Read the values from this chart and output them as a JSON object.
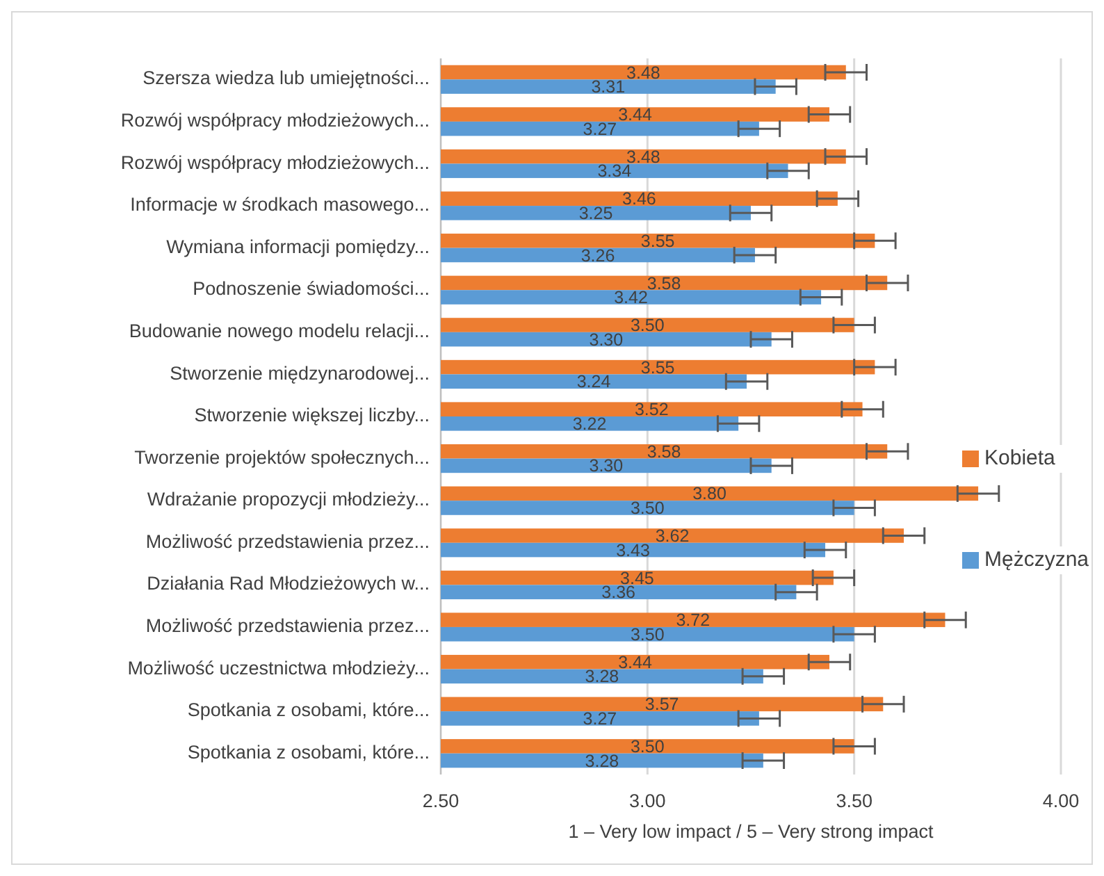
{
  "chart_data": {
    "type": "bar",
    "orientation": "horizontal",
    "xlabel": "1 – Very low impact / 5 – Very strong impact",
    "categories": [
      "Szersza wiedza lub umiejętności...",
      "Rozwój współpracy młodzieżowych...",
      "Rozwój współpracy młodzieżowych...",
      "Informacje w środkach masowego...",
      "Wymiana informacji pomiędzy...",
      "Podnoszenie świadomości...",
      "Budowanie nowego modelu relacji...",
      "Stworzenie międzynarodowej...",
      "Stworzenie większej liczby...",
      "Tworzenie projektów społecznych...",
      "Wdrażanie propozycji młodzieży...",
      "Możliwość przedstawienia przez...",
      "Działania Rad Młodzieżowych w...",
      "Możliwość przedstawienia przez...",
      "Możliwość uczestnictwa młodzieży...",
      "Spotkania z osobami, które...",
      "Spotkania z osobami, które..."
    ],
    "series": [
      {
        "name": "Kobieta",
        "color": "#ed7d31",
        "values": [
          3.48,
          3.44,
          3.48,
          3.46,
          3.55,
          3.58,
          3.5,
          3.55,
          3.52,
          3.58,
          3.8,
          3.62,
          3.45,
          3.72,
          3.44,
          3.57,
          3.5
        ],
        "value_labels": [
          "3.48",
          "3.44",
          "3.48",
          "3.46",
          "3.55",
          "3.58",
          "3.50",
          "3.55",
          "3.52",
          "3.58",
          "3.80",
          "3.62",
          "3.45",
          "3.72",
          "3.44",
          "3.57",
          "3.50"
        ],
        "errors": [
          0.05,
          0.05,
          0.05,
          0.05,
          0.05,
          0.05,
          0.05,
          0.05,
          0.05,
          0.05,
          0.05,
          0.05,
          0.05,
          0.05,
          0.05,
          0.05,
          0.05
        ]
      },
      {
        "name": "Mężczyzna",
        "color": "#5b9bd5",
        "values": [
          3.31,
          3.27,
          3.34,
          3.25,
          3.26,
          3.42,
          3.3,
          3.24,
          3.22,
          3.3,
          3.5,
          3.43,
          3.36,
          3.5,
          3.28,
          3.27,
          3.28
        ],
        "value_labels": [
          "3.31",
          "3.27",
          "3.34",
          "3.25",
          "3.26",
          "3.42",
          "3.30",
          "3.24",
          "3.22",
          "3.30",
          "3.50",
          "3.43",
          "3.36",
          "3.50",
          "3.28",
          "3.27",
          "3.28"
        ],
        "errors": [
          0.05,
          0.05,
          0.05,
          0.05,
          0.05,
          0.05,
          0.05,
          0.05,
          0.05,
          0.05,
          0.05,
          0.05,
          0.05,
          0.05,
          0.05,
          0.05,
          0.05
        ]
      }
    ],
    "xlim": [
      2.5,
      4.0
    ],
    "xticks": [
      {
        "value": 2.5,
        "label": "2.50"
      },
      {
        "value": 3.0,
        "label": "3.00"
      },
      {
        "value": 3.5,
        "label": "3.50"
      },
      {
        "value": 4.0,
        "label": "4.00"
      }
    ],
    "grid": "x",
    "legend": "right"
  }
}
